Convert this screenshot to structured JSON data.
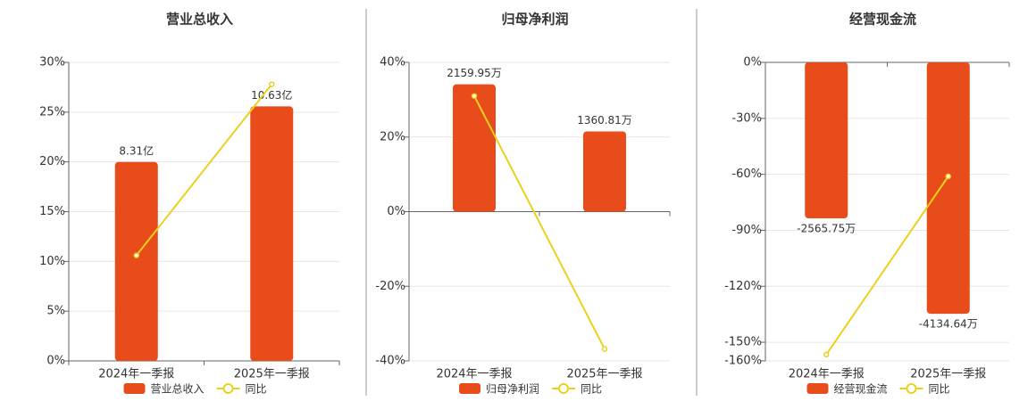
{
  "chart_data": [
    {
      "type": "combo",
      "title": "营业总收入",
      "categories": [
        "2024年一季报",
        "2025年一季报"
      ],
      "ylim": [
        0,
        30
      ],
      "yticks": [
        {
          "value": 0,
          "label": "0%"
        },
        {
          "value": 5,
          "label": "5%"
        },
        {
          "value": 10,
          "label": "10%"
        },
        {
          "value": 15,
          "label": "15%"
        },
        {
          "value": 20,
          "label": "20%"
        },
        {
          "value": 25,
          "label": "25%"
        },
        {
          "value": 30,
          "label": "30%"
        }
      ],
      "y2lim": [
        0,
        12.47
      ],
      "grid": true,
      "series": [
        {
          "name": "营业总收入",
          "type": "bar",
          "axis": "y2",
          "color": "#e84c1a",
          "values": [
            8.31,
            10.63
          ],
          "value_labels": [
            "8.31亿",
            "10.63亿"
          ]
        },
        {
          "name": "同比",
          "type": "line",
          "color": "#ecd01e",
          "values": [
            10.6,
            27.8
          ]
        }
      ]
    },
    {
      "type": "combo",
      "title": "归母净利润",
      "categories": [
        "2024年一季报",
        "2025年一季报"
      ],
      "ylim": [
        -40,
        40
      ],
      "yticks": [
        {
          "value": -40,
          "label": "-40%"
        },
        {
          "value": -20,
          "label": "-20%"
        },
        {
          "value": 0,
          "label": "0%"
        },
        {
          "value": 20,
          "label": "20%"
        },
        {
          "value": 40,
          "label": "40%"
        }
      ],
      "y2lim": [
        -2533,
        2533
      ],
      "grid": true,
      "series": [
        {
          "name": "归母净利润",
          "type": "bar",
          "axis": "y2",
          "color": "#e84c1a",
          "values": [
            2159.95,
            1360.81
          ],
          "value_labels": [
            "2159.95万",
            "1360.81万"
          ]
        },
        {
          "name": "同比",
          "type": "line",
          "color": "#ecd01e",
          "values": [
            31.0,
            -36.8
          ]
        }
      ]
    },
    {
      "type": "combo",
      "title": "经营现金流",
      "categories": [
        "2024年一季报",
        "2025年一季报"
      ],
      "ylim": [
        -160,
        0
      ],
      "yticks": [
        {
          "value": -160,
          "label": "-160%"
        },
        {
          "value": -150,
          "label": "-150%"
        },
        {
          "value": -120,
          "label": "-120%"
        },
        {
          "value": -90,
          "label": "-90%"
        },
        {
          "value": -60,
          "label": "-60%"
        },
        {
          "value": -30,
          "label": "-30%"
        },
        {
          "value": 0,
          "label": "0%"
        }
      ],
      "y2lim": [
        -4910,
        0
      ],
      "grid": true,
      "series": [
        {
          "name": "经营现金流",
          "type": "bar",
          "axis": "y2",
          "color": "#e84c1a",
          "values": [
            -2565.75,
            -4134.64
          ],
          "value_labels": [
            "-2565.75万",
            "-4134.64万"
          ]
        },
        {
          "name": "同比",
          "type": "line",
          "color": "#ecd01e",
          "values": [
            -156.6,
            -61.1
          ]
        }
      ]
    }
  ]
}
